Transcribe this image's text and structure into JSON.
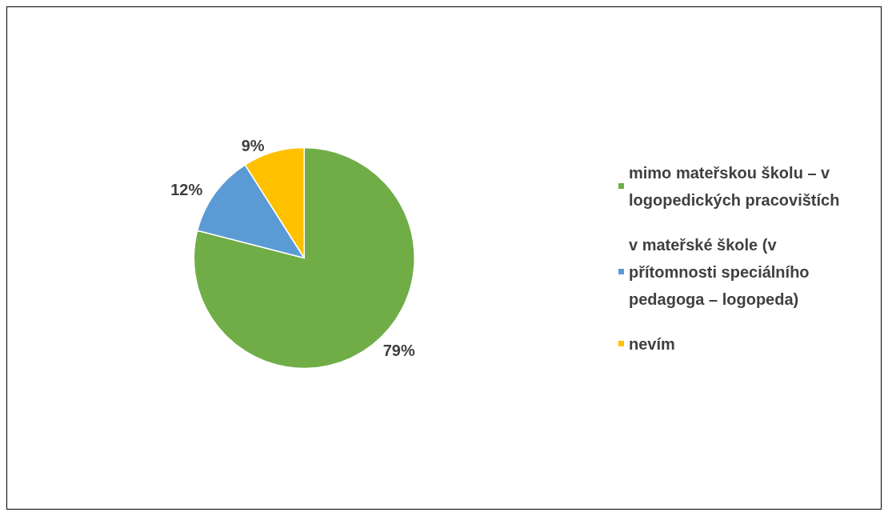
{
  "chart_data": {
    "type": "pie",
    "categories": [
      "mimo mateřskou školu – v logopedických pracovištích",
      "v mateřské škole (v přítomnosti speciálního pedagoga – logopeda)",
      "nevím"
    ],
    "values": [
      79,
      12,
      9
    ],
    "colors": [
      "#70ad47",
      "#5b9bd5",
      "#ffc000"
    ],
    "value_labels": [
      "79%",
      "12%",
      "9%"
    ],
    "legend": "right"
  }
}
